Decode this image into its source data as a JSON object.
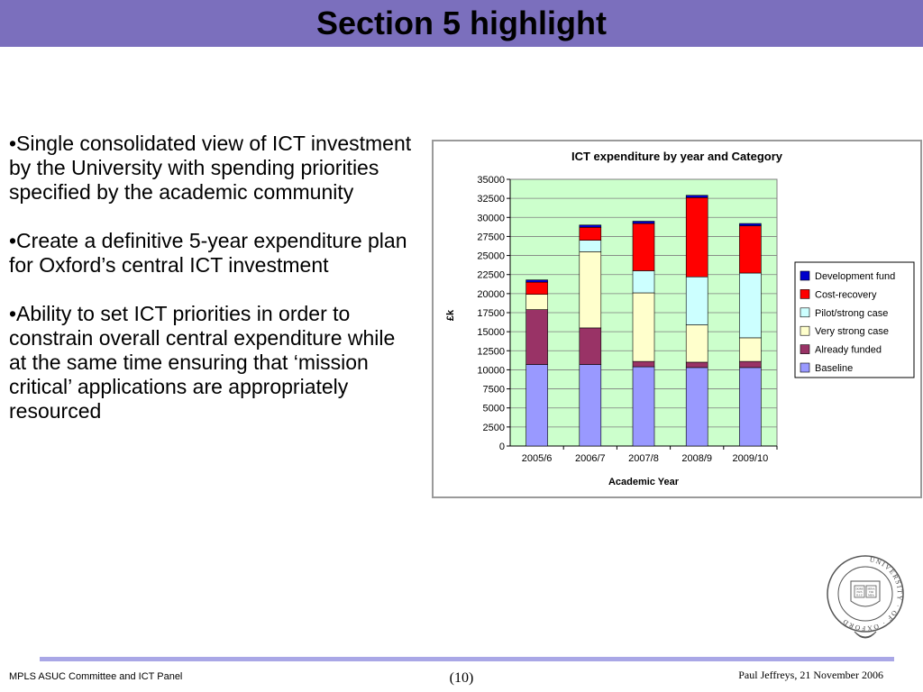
{
  "slide": {
    "title": "Section 5 highlight",
    "bullets": [
      "•Single consolidated view of ICT investment by the University with spending priorities specified by the academic community",
      "•Create a definitive 5-year expenditure plan for Oxford’s central ICT investment",
      "•Ability to set ICT priorities in order to constrain overall central expenditure while at the same time ensuring that ‘mission critical’ applications are appropriately resourced"
    ]
  },
  "footer": {
    "left": "MPLS ASUC Committee and ICT Panel",
    "center": "(10)",
    "right": "Paul Jeffreys, 21 November 2006"
  },
  "seal": {
    "ring_text": "UNIVERSITY · OF · OXFORD",
    "book_text": [
      "DOMI",
      "NUS",
      "ILLU",
      "MINA",
      "TIO",
      "MEA"
    ]
  },
  "chart_data": {
    "type": "bar",
    "stacked": true,
    "title": "ICT expenditure by year and Category",
    "xlabel": "Academic Year",
    "ylabel": "£k",
    "categories": [
      "2005/6",
      "2006/7",
      "2007/8",
      "2008/9",
      "2009/10"
    ],
    "ylim": [
      0,
      35000
    ],
    "yticks": [
      0,
      2500,
      5000,
      7500,
      10000,
      12500,
      15000,
      17500,
      20000,
      22500,
      25000,
      27500,
      30000,
      32500,
      35000
    ],
    "grid": true,
    "legend_position": "right",
    "plot_background": "#ccffcc",
    "series": [
      {
        "name": "Baseline",
        "color": "#9999ff",
        "values": [
          10700,
          10700,
          10400,
          10300,
          10300
        ]
      },
      {
        "name": "Already funded",
        "color": "#993366",
        "values": [
          7200,
          4800,
          700,
          700,
          800
        ]
      },
      {
        "name": "Very strong case",
        "color": "#ffffcc",
        "values": [
          2000,
          10000,
          9000,
          4900,
          3100
        ]
      },
      {
        "name": "Pilot/strong case",
        "color": "#ccffff",
        "values": [
          0,
          1500,
          2900,
          6300,
          8500
        ]
      },
      {
        "name": "Cost-recovery",
        "color": "#ff0000",
        "values": [
          1600,
          1700,
          6200,
          10400,
          6200
        ]
      },
      {
        "name": "Development fund",
        "color": "#0000cc",
        "values": [
          300,
          300,
          300,
          300,
          300
        ]
      }
    ],
    "legend_order": [
      "Development fund",
      "Cost-recovery",
      "Pilot/strong case",
      "Very strong case",
      "Already funded",
      "Baseline"
    ]
  }
}
